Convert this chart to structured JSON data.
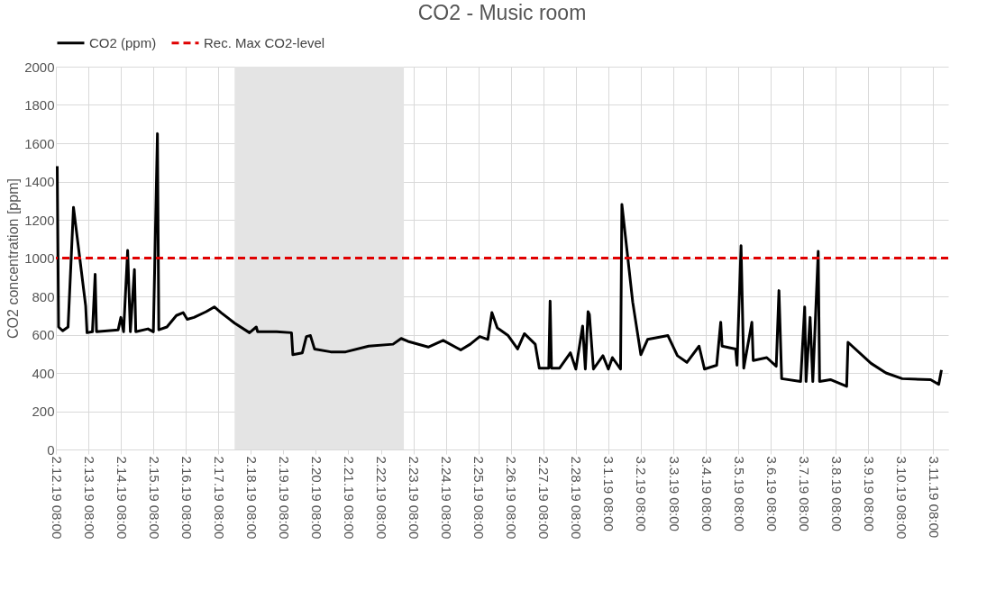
{
  "chart_data": {
    "type": "line",
    "title": "CO2 - Music room",
    "ylabel": "CO2 concentration [ppm]",
    "x": [
      "--02-12T09:00",
      "--02-12T10:00",
      "--02-12T13:00",
      "--02-12T17:00",
      "--02-12T21:00",
      "--02-13T06:00",
      "--02-13T07:00",
      "--02-13T11:00",
      "--02-13T13:00",
      "--02-13T14:00",
      "--02-14T06:00",
      "--02-14T08:00",
      "--02-14T10:00",
      "--02-14T13:00",
      "--02-14T15:00",
      "--02-14T18:00",
      "--02-14T19:00",
      "--02-15T04:00",
      "--02-15T08:00",
      "--02-15T10:00",
      "--02-15T11:00",
      "--02-15T12:00",
      "--02-15T18:00",
      "--02-16T01:00",
      "--02-16T06:00",
      "--02-16T09:00",
      "--02-16T14:00",
      "--02-16T23:00",
      "--02-17T05:00",
      "--02-17T10:00",
      "--02-17T20:00",
      "--02-18T07:00",
      "--02-18T12:00",
      "--02-18T13:00",
      "--02-19T03:00",
      "--02-19T14:00",
      "--02-19T15:00",
      "--02-19T22:00",
      "--02-20T01:00",
      "--02-20T04:00",
      "--02-20T07:00",
      "--02-20T19:00",
      "--02-21T06:00",
      "--02-21T23:00",
      "--02-22T17:00",
      "--02-22T23:00",
      "--02-23T04:00",
      "--02-23T19:00",
      "--02-24T06:00",
      "--02-24T19:00",
      "--02-25T02:00",
      "--02-25T09:00",
      "--02-25T15:00",
      "--02-25T18:00",
      "--02-25T22:00",
      "--02-26T06:00",
      "--02-26T13:00",
      "--02-26T18:00",
      "--02-27T02:00",
      "--02-27T05:00",
      "--02-27T12:00",
      "--02-27T13:00",
      "--02-27T14:00",
      "--02-27T20:00",
      "--02-28T04:00",
      "--02-28T08:00",
      "--02-28T13:00",
      "--02-28T15:00",
      "--02-28T17:00",
      "--02-28T18:00",
      "--02-28T21:00",
      "--03-01T04:00",
      "--03-01T08:00",
      "--03-01T11:00",
      "--03-01T17:00",
      "--03-01T18:00",
      "--03-02T02:00",
      "--03-02T08:00",
      "--03-02T13:00",
      "--03-03T04:00",
      "--03-03T11:00",
      "--03-03T18:00",
      "--03-04T03:00",
      "--03-04T07:00",
      "--03-04T16:00",
      "--03-04T19:00",
      "--03-04T20:00",
      "--03-05T06:00",
      "--03-05T07:00",
      "--03-05T10:00",
      "--03-05T12:00",
      "--03-05T18:00",
      "--03-05T19:00",
      "--03-06T05:00",
      "--03-06T12:00",
      "--03-06T14:00",
      "--03-06T16:00",
      "--03-07T06:00",
      "--03-07T09:00",
      "--03-07T10:00",
      "--03-07T13:00",
      "--03-07T15:00",
      "--03-07T19:00",
      "--03-07T20:00",
      "--03-08T04:00",
      "--03-08T16:00",
      "--03-08T17:00",
      "--03-09T10:00",
      "--03-09T21:00",
      "--03-10T09:00",
      "--03-11T06:00",
      "--03-11T12:00",
      "--03-11T14:00"
    ],
    "series": [
      {
        "name": "CO2 (ppm)",
        "color": "#000000",
        "values": [
          1480,
          640,
          620,
          640,
          1265,
          750,
          610,
          615,
          915,
          615,
          625,
          690,
          615,
          1040,
          615,
          940,
          615,
          630,
          615,
          1310,
          1650,
          625,
          640,
          700,
          715,
          680,
          690,
          720,
          745,
          715,
          660,
          610,
          640,
          615,
          615,
          610,
          495,
          505,
          590,
          595,
          525,
          510,
          510,
          540,
          550,
          580,
          565,
          535,
          570,
          520,
          550,
          590,
          575,
          715,
          635,
          595,
          525,
          605,
          550,
          425,
          425,
          775,
          425,
          425,
          505,
          420,
          645,
          420,
          720,
          705,
          420,
          490,
          420,
          480,
          420,
          1280,
          770,
          495,
          575,
          595,
          490,
          455,
          540,
          420,
          440,
          665,
          540,
          525,
          440,
          1065,
          425,
          665,
          465,
          480,
          435,
          830,
          370,
          355,
          745,
          355,
          690,
          355,
          1035,
          355,
          365,
          330,
          560,
          450,
          400,
          370,
          365,
          340,
          415
        ]
      }
    ],
    "xlim": [
      "--02-12T08:00",
      "--03-11T19:00"
    ],
    "xticks": [
      {
        "value": "--02-12T08:00",
        "label": "2.12.19 08:00"
      },
      {
        "value": "--02-13T08:00",
        "label": "2.13.19 08:00"
      },
      {
        "value": "--02-14T08:00",
        "label": "2.14.19 08:00"
      },
      {
        "value": "--02-15T08:00",
        "label": "2.15.19 08:00"
      },
      {
        "value": "--02-16T08:00",
        "label": "2.16.19 08:00"
      },
      {
        "value": "--02-17T08:00",
        "label": "2.17.19 08:00"
      },
      {
        "value": "--02-18T08:00",
        "label": "2.18.19 08:00"
      },
      {
        "value": "--02-19T08:00",
        "label": "2.19.19 08:00"
      },
      {
        "value": "--02-20T08:00",
        "label": "2.20.19 08:00"
      },
      {
        "value": "--02-21T08:00",
        "label": "2.21.19 08:00"
      },
      {
        "value": "--02-22T08:00",
        "label": "2.22.19 08:00"
      },
      {
        "value": "--02-23T08:00",
        "label": "2.23.19 08:00"
      },
      {
        "value": "--02-24T08:00",
        "label": "2.24.19 08:00"
      },
      {
        "value": "--02-25T08:00",
        "label": "2.25.19 08:00"
      },
      {
        "value": "--02-26T08:00",
        "label": "2.26.19 08:00"
      },
      {
        "value": "--02-27T08:00",
        "label": "2.27.19 08:00"
      },
      {
        "value": "--02-28T08:00",
        "label": "2.28.19 08:00"
      },
      {
        "value": "--03-01T08:00",
        "label": "3.1.19 08:00"
      },
      {
        "value": "--03-02T08:00",
        "label": "3.2.19 08:00"
      },
      {
        "value": "--03-03T08:00",
        "label": "3.3.19 08:00"
      },
      {
        "value": "--03-04T08:00",
        "label": "3.4.19 08:00"
      },
      {
        "value": "--03-05T08:00",
        "label": "3.5.19 08:00"
      },
      {
        "value": "--03-06T08:00",
        "label": "3.6.19 08:00"
      },
      {
        "value": "--03-07T08:00",
        "label": "3.7.19 08:00"
      },
      {
        "value": "--03-08T08:00",
        "label": "3.8.19 08:00"
      },
      {
        "value": "--03-09T08:00",
        "label": "3.9.19 08:00"
      },
      {
        "value": "--03-10T08:00",
        "label": "3.10.19 08:00"
      },
      {
        "value": "--03-11T08:00",
        "label": "3.11.19 08:00"
      }
    ],
    "ylim": [
      0,
      2000
    ],
    "yticks": [
      0,
      200,
      400,
      600,
      800,
      1000,
      1200,
      1400,
      1600,
      1800,
      2000
    ],
    "ref_lines": [
      {
        "axis": "y",
        "value": 1000,
        "label": "Rec. Max CO2-level",
        "color": "#e00000",
        "line_style": "dashed"
      }
    ],
    "bands": [
      {
        "axis": "x",
        "from": "--02-17T20:00",
        "to": "--02-23T01:00",
        "color": "#e4e4e4"
      }
    ],
    "grid": true,
    "legend": "top",
    "line_style": "solid",
    "marker": "none"
  }
}
